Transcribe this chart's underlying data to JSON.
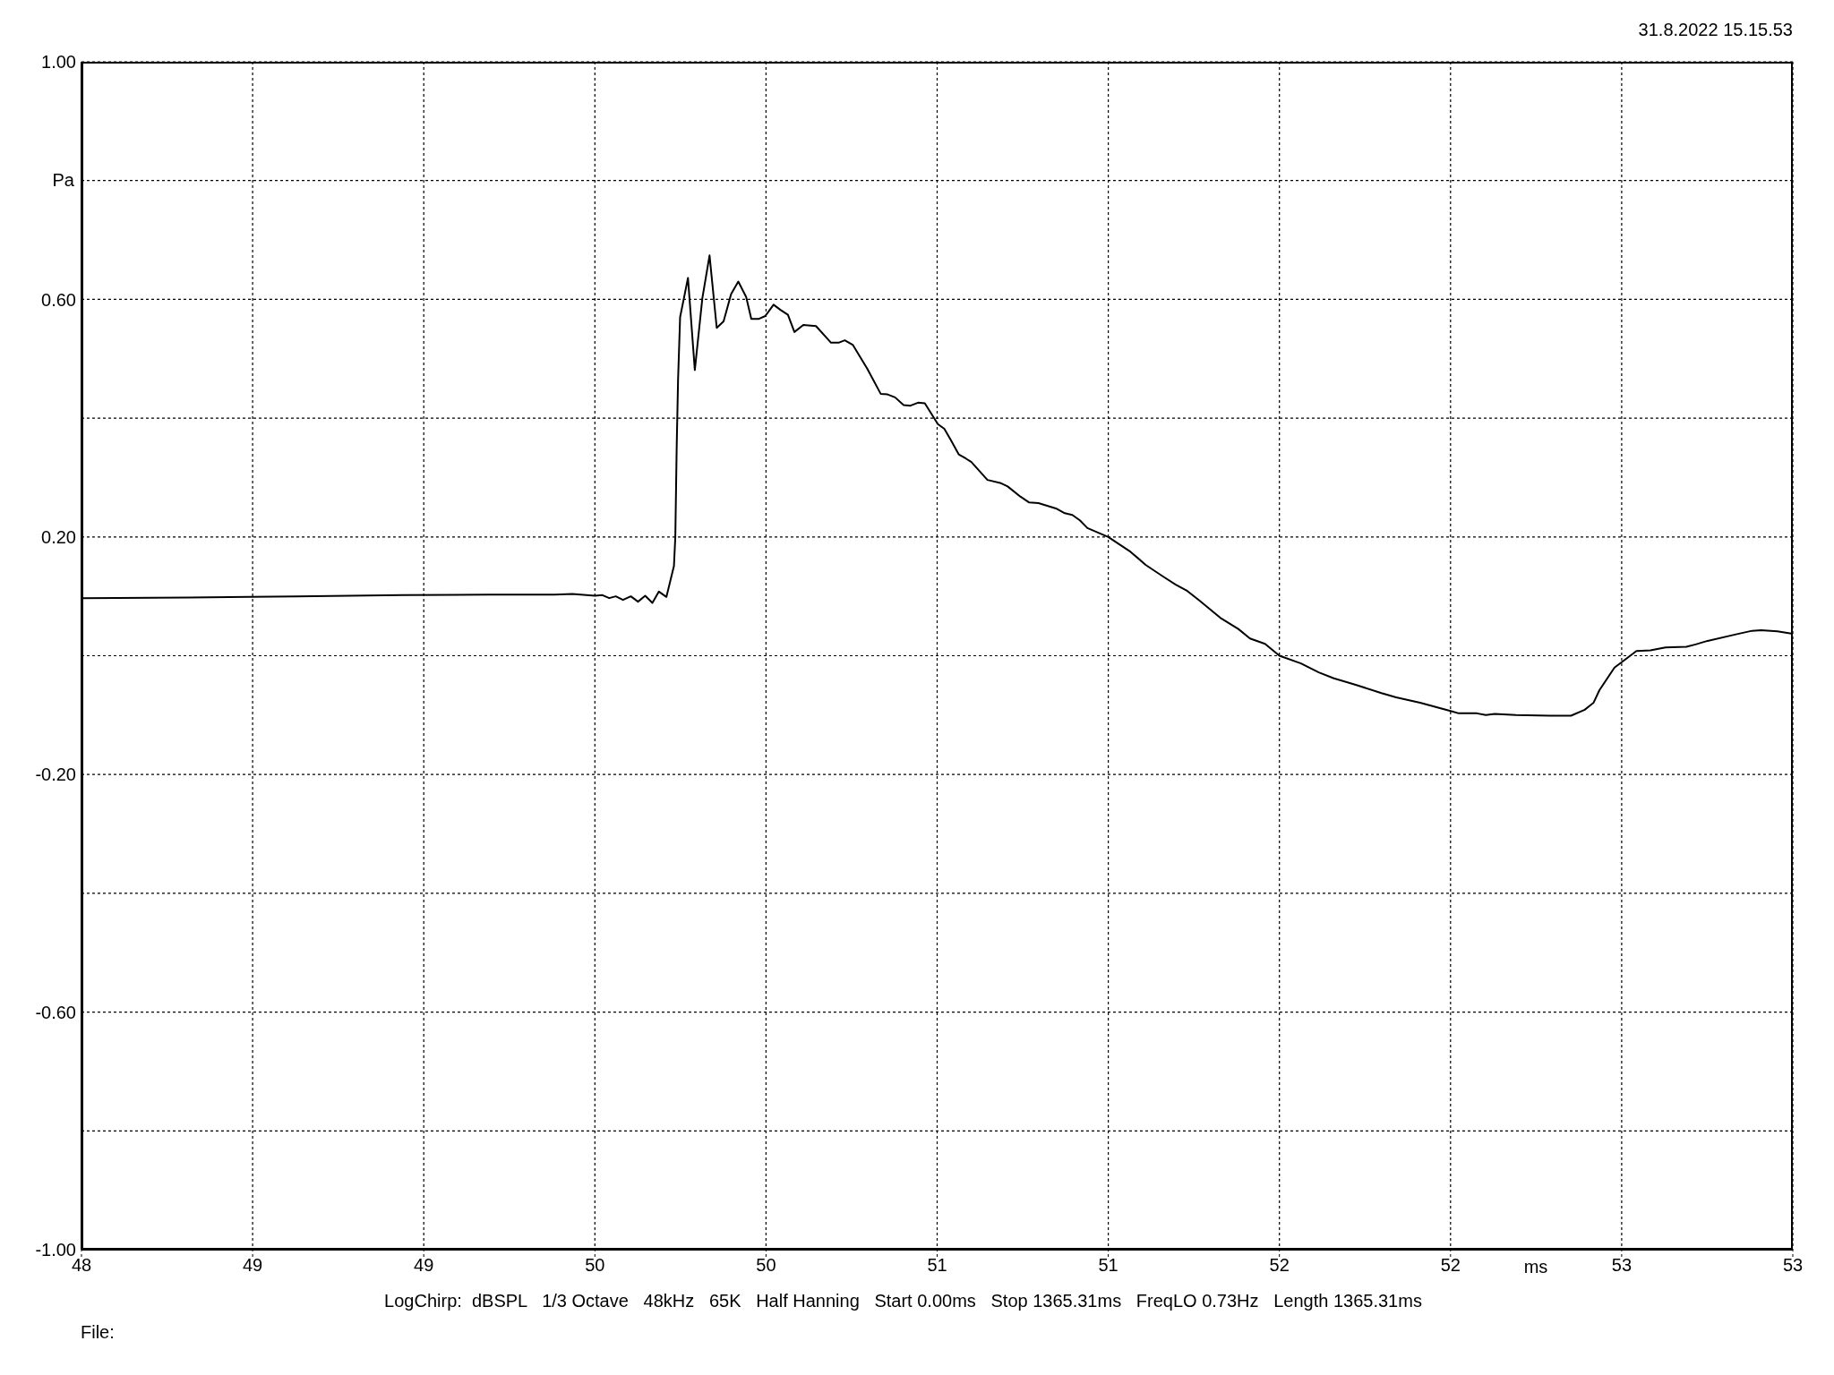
{
  "chart_data": {
    "type": "line",
    "xlabel": "ms",
    "ylabel": "Pa",
    "annotations": [
      "31.8.2022 15.15.53",
      "LogChirp:  dBSPL   1/3 Octave   48kHz   65K   Half Hanning   Start 0.00ms   Stop 1365.31ms   FreqLO 0.73Hz   Length 1365.31ms",
      "File:"
    ],
    "x": [
      48.0,
      48.313,
      48.626,
      48.939,
      49.191,
      49.383,
      49.434,
      49.5,
      49.522,
      49.542,
      49.561,
      49.582,
      49.605,
      49.626,
      49.647,
      49.668,
      49.687,
      49.709,
      49.731,
      49.735,
      49.739,
      49.743,
      49.749,
      49.772,
      49.792,
      49.814,
      49.835,
      49.856,
      49.876,
      49.898,
      49.919,
      49.942,
      49.957,
      49.978,
      49.998,
      50.022,
      50.043,
      50.064,
      50.083,
      50.109,
      50.146,
      50.19,
      50.212,
      50.23,
      50.254,
      50.296,
      50.335,
      50.355,
      50.377,
      50.402,
      50.422,
      50.444,
      50.464,
      50.502,
      50.521,
      50.541,
      50.563,
      50.584,
      50.6,
      50.647,
      50.684,
      50.706,
      50.743,
      50.769,
      50.796,
      50.847,
      50.873,
      50.895,
      50.917,
      50.939,
      51.0,
      51.065,
      51.109,
      51.161,
      51.196,
      51.231,
      51.266,
      51.327,
      51.38,
      51.414,
      51.458,
      51.5,
      51.563,
      51.615,
      51.659,
      51.729,
      51.798,
      51.841,
      51.911,
      52.0,
      52.024,
      52.077,
      52.103,
      52.129,
      52.191,
      52.291,
      52.352,
      52.392,
      52.418,
      52.435,
      52.479,
      52.5,
      52.543,
      52.584,
      52.628,
      52.689,
      52.716,
      52.751,
      52.834,
      52.881,
      52.907,
      52.955,
      53.0
    ],
    "series": [
      {
        "color": "#000000",
        "values": [
          0.097,
          0.098,
          0.1,
          0.102,
          0.103,
          0.103,
          0.104,
          0.101,
          0.102,
          0.097,
          0.1,
          0.094,
          0.1,
          0.091,
          0.101,
          0.089,
          0.108,
          0.099,
          0.151,
          0.2,
          0.351,
          0.464,
          0.57,
          0.636,
          0.481,
          0.602,
          0.674,
          0.552,
          0.563,
          0.609,
          0.63,
          0.604,
          0.567,
          0.567,
          0.572,
          0.591,
          0.582,
          0.574,
          0.545,
          0.557,
          0.555,
          0.527,
          0.527,
          0.531,
          0.523,
          0.483,
          0.441,
          0.44,
          0.435,
          0.422,
          0.421,
          0.426,
          0.425,
          0.39,
          0.382,
          0.362,
          0.339,
          0.332,
          0.326,
          0.296,
          0.291,
          0.285,
          0.268,
          0.258,
          0.257,
          0.248,
          0.24,
          0.237,
          0.228,
          0.215,
          0.2,
          0.175,
          0.153,
          0.133,
          0.12,
          0.109,
          0.093,
          0.064,
          0.045,
          0.029,
          0.02,
          0.0,
          -0.013,
          -0.028,
          -0.038,
          -0.05,
          -0.063,
          -0.07,
          -0.079,
          -0.093,
          -0.097,
          -0.097,
          -0.1,
          -0.098,
          -0.1,
          -0.101,
          -0.101,
          -0.091,
          -0.079,
          -0.058,
          -0.02,
          -0.011,
          0.008,
          0.009,
          0.014,
          0.015,
          0.019,
          0.025,
          0.036,
          0.042,
          0.043,
          0.041,
          0.037
        ]
      }
    ],
    "xlim": [
      48,
      53
    ],
    "xticks": [
      48,
      {
        "value": 48.5,
        "label": "49"
      },
      49,
      {
        "value": 49.5,
        "label": "50"
      },
      50,
      {
        "value": 50.5,
        "label": "51"
      },
      51,
      {
        "value": 51.5,
        "label": "52"
      },
      52,
      {
        "value": 52.5,
        "label": "53"
      },
      53
    ],
    "ylim": [
      -1,
      1
    ],
    "yticks": [
      {
        "value": -1,
        "label": "-1.00"
      },
      {
        "value": -0.8,
        "label": null
      },
      {
        "value": -0.6,
        "label": "-0.60"
      },
      {
        "value": -0.4,
        "label": null
      },
      {
        "value": -0.2,
        "label": "-0.20"
      },
      {
        "value": 0,
        "label": null
      },
      {
        "value": 0.2,
        "label": "0.20"
      },
      {
        "value": 0.4,
        "label": null
      },
      {
        "value": 0.6,
        "label": "0.60"
      },
      {
        "value": 0.8,
        "label": null
      },
      {
        "value": 1,
        "label": "1.00"
      }
    ],
    "grid": true,
    "marker": "none",
    "line_style": "solid"
  }
}
